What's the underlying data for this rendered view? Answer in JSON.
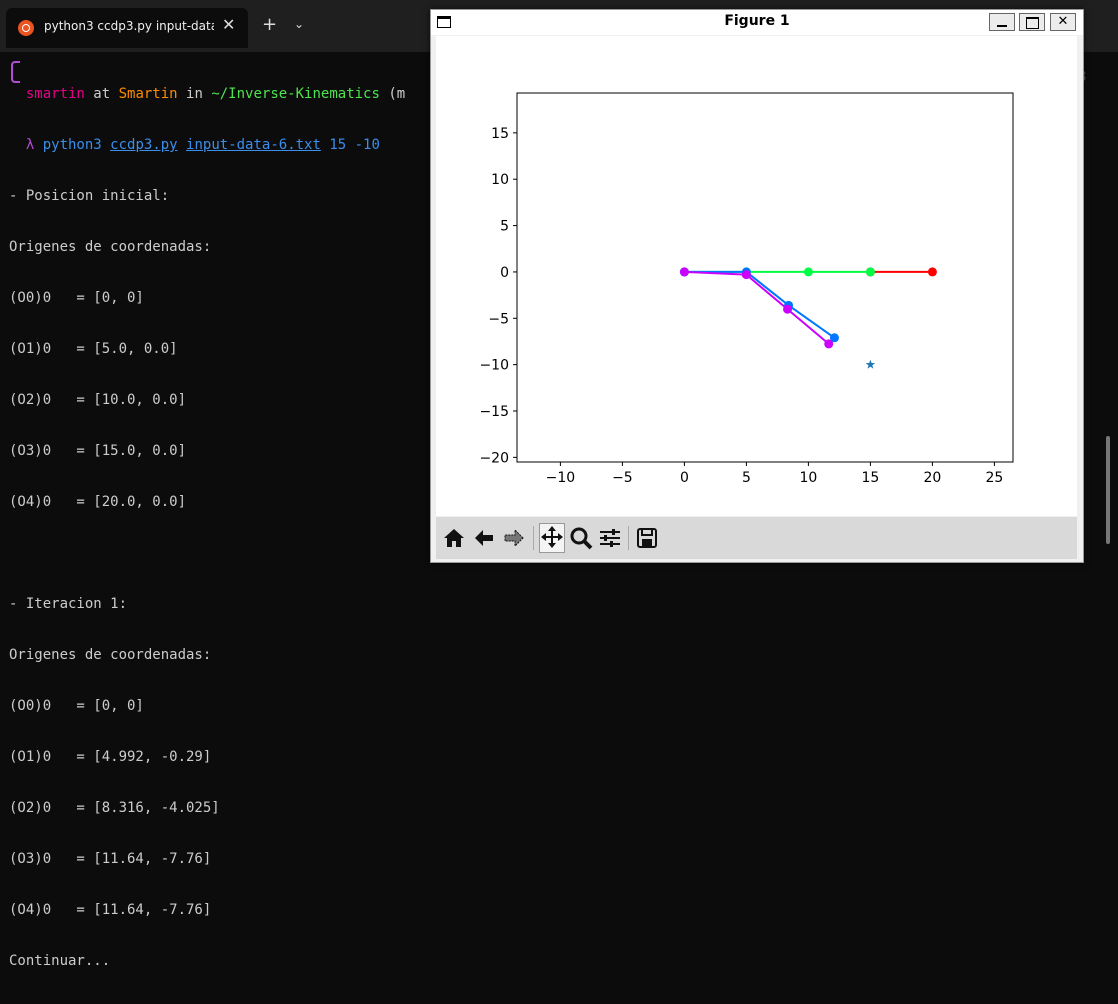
{
  "terminal": {
    "tab_title": "python3 ccdp3.py input-data-",
    "tab_close": "✕",
    "new_tab": "+",
    "tab_dropdown": "⌄",
    "prompt": {
      "user": "smartin",
      "at": " at ",
      "host": "Smartin",
      "in": " in ",
      "path": "~/Inverse-Kinematics",
      "tail": " (m",
      "lambda": "λ ",
      "cmd": "python3",
      "script": "ccdp3.py",
      "datafile": "input-data-6.txt",
      "args": " 15 -10"
    },
    "lines": [
      "- Posicion inicial:",
      "Origenes de coordenadas:",
      "(O0)0   = [0, 0]",
      "(O1)0   = [5.0, 0.0]",
      "(O2)0   = [10.0, 0.0]",
      "(O3)0   = [15.0, 0.0]",
      "(O4)0   = [20.0, 0.0]",
      "",
      "- Iteracion 1:",
      "Origenes de coordenadas:",
      "(O0)0   = [0, 0]",
      "(O1)0   = [4.992, -0.29]",
      "(O2)0   = [8.316, -4.025]",
      "(O3)0   = [11.64, -7.76]",
      "(O4)0   = [11.64, -7.76]",
      "Continuar..."
    ],
    "stray_digit": "8"
  },
  "figure": {
    "title": "Figure 1",
    "controls": {
      "minimize": "",
      "maximize": "",
      "close": "✕"
    },
    "toolbar": [
      "home-icon",
      "back-icon",
      "forward-icon",
      "pan-icon",
      "zoom-icon",
      "configure-icon",
      "save-icon"
    ],
    "active_tool": "pan-icon"
  },
  "chart_data": {
    "type": "line",
    "title": "",
    "xlabel": "",
    "ylabel": "",
    "xlim": [
      -13.5,
      26.5
    ],
    "ylim": [
      -20.5,
      19.3
    ],
    "xticks": [
      -10,
      -5,
      0,
      5,
      10,
      15,
      20,
      25
    ],
    "yticks": [
      -20,
      -15,
      -10,
      -5,
      0,
      5,
      10,
      15
    ],
    "grid": false,
    "series": [
      {
        "color": "#ff0000",
        "marker": "o",
        "x": [
          15,
          20
        ],
        "y": [
          0,
          0
        ]
      },
      {
        "color": "#00ff44",
        "marker": "o",
        "x": [
          0,
          5,
          10,
          15
        ],
        "y": [
          0,
          0,
          0,
          0
        ]
      },
      {
        "color": "#0077ff",
        "marker": "o",
        "x": [
          0,
          5,
          8.4,
          12.1
        ],
        "y": [
          0,
          0,
          -3.6,
          -7.1
        ]
      },
      {
        "color": "#cc00ff",
        "marker": "o",
        "x": [
          0,
          4.992,
          8.316,
          11.64
        ],
        "y": [
          0,
          -0.29,
          -4.025,
          -7.76
        ]
      }
    ],
    "target": {
      "x": 15,
      "y": -10,
      "marker": "*",
      "color": "#1f77b4"
    }
  }
}
